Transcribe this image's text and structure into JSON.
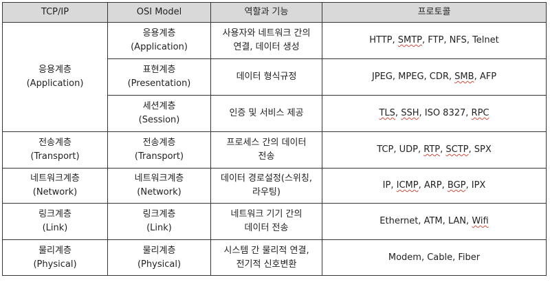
{
  "headers": [
    "TCP/IP",
    "OSI Model",
    "역할과 기능",
    "프로토콜"
  ],
  "rows": [
    {
      "tcpip": [
        "응용계층",
        "(Application)"
      ],
      "osi": [
        "응용계층",
        "(Application)"
      ],
      "role": [
        "사용자와 네트워크 간의",
        "연결, 데이터 생성"
      ],
      "protocols": "HTTP, SMTP, FTP, NFS, Telnet"
    },
    {
      "osi": [
        "표현계층",
        "(Presentation)"
      ],
      "role": [
        "데이터 형식규정"
      ],
      "protocols": "JPEG, MPEG, CDR, SMB, AFP"
    },
    {
      "osi": [
        "세션계층",
        "(Session)"
      ],
      "role": [
        "인증 및 서비스 제공"
      ],
      "protocols": "TLS, SSH, ISO 8327, RPC"
    },
    {
      "tcpip": [
        "전송계층",
        "(Transport)"
      ],
      "osi": [
        "전송계층",
        "(Transport)"
      ],
      "role": [
        "프로세스 간의 데이터",
        "전송"
      ],
      "protocols": "TCP, UDP, RTP, SCTP, SPX"
    },
    {
      "tcpip": [
        "네트워크계층",
        "(Network)"
      ],
      "osi": [
        "네트워크계층",
        "(Network)"
      ],
      "role": [
        "데이터 경로설정(스위칭,",
        "라우팅)"
      ],
      "protocols": "IP, ICMP, ARP, BGP, IPX"
    },
    {
      "tcpip": [
        "링크계층",
        "(Link)"
      ],
      "osi": [
        "링크계층",
        "(Link)"
      ],
      "role": [
        "네트워크 기기 간의",
        "데이터 전송"
      ],
      "protocols": "Ethernet, ATM, LAN, Wifi"
    },
    {
      "tcpip": [
        "물리계층",
        "(Physical)"
      ],
      "osi": [
        "물리계층",
        "(Physical)"
      ],
      "role": [
        "시스템 간 물리적 연결,",
        "전기적 신호변환"
      ],
      "protocols": "Modem, Cable, Fiber"
    }
  ],
  "spellcheck_flagged": [
    "SMTP",
    "SMB",
    "TLS",
    "SSH",
    "RPC",
    "RTP",
    "SCTP",
    "ICMP",
    "BGP",
    "Wifi"
  ],
  "colors": {
    "header_bg": "#d9d9d9",
    "border": "#333333",
    "text": "#222222",
    "squiggle": "#d04b3c"
  }
}
